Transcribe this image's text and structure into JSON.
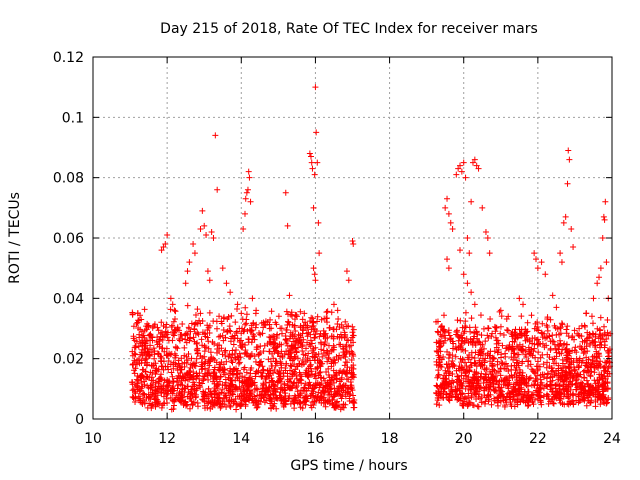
{
  "chart_data": {
    "type": "scatter",
    "marker": "+",
    "color": "#ff0000",
    "title": "Day 215 of 2018, Rate Of TEC Index for receiver mars",
    "xlabel": "GPS time / hours",
    "ylabel": "ROTI / TECUs",
    "xlim": [
      10,
      24
    ],
    "ylim": [
      0,
      0.12
    ],
    "grid": true,
    "x_ticks": [
      10,
      12,
      14,
      16,
      18,
      20,
      22,
      24
    ],
    "x_tick_labels": [
      "10",
      "12",
      "14",
      "16",
      "18",
      "20",
      "22",
      "24"
    ],
    "y_ticks": [
      0,
      0.02,
      0.04,
      0.06,
      0.08,
      0.1,
      0.12
    ],
    "y_tick_labels": [
      "0",
      "0.02",
      "0.04",
      "0.06",
      "0.08",
      "0.1",
      "0.12"
    ],
    "dense_bands": [
      {
        "x_start": 11.05,
        "x_end": 17.05,
        "y_min": 0.003,
        "y_max": 0.03,
        "points": 1800
      },
      {
        "x_start": 19.25,
        "x_end": 23.95,
        "y_min": 0.004,
        "y_max": 0.028,
        "points": 1400
      }
    ],
    "points": [
      [
        11.2,
        0.032
      ],
      [
        11.3,
        0.033
      ],
      [
        11.5,
        0.031
      ],
      [
        11.6,
        0.027
      ],
      [
        11.85,
        0.056
      ],
      [
        11.9,
        0.057
      ],
      [
        11.95,
        0.058
      ],
      [
        12.0,
        0.061
      ],
      [
        12.1,
        0.04
      ],
      [
        12.15,
        0.038
      ],
      [
        12.2,
        0.036
      ],
      [
        12.5,
        0.045
      ],
      [
        12.55,
        0.049
      ],
      [
        12.6,
        0.052
      ],
      [
        12.7,
        0.058
      ],
      [
        12.75,
        0.055
      ],
      [
        12.9,
        0.063
      ],
      [
        12.95,
        0.069
      ],
      [
        13.0,
        0.064
      ],
      [
        13.05,
        0.061
      ],
      [
        13.1,
        0.049
      ],
      [
        13.15,
        0.046
      ],
      [
        13.2,
        0.062
      ],
      [
        13.25,
        0.06
      ],
      [
        13.3,
        0.094
      ],
      [
        13.35,
        0.076
      ],
      [
        13.5,
        0.05
      ],
      [
        13.6,
        0.045
      ],
      [
        13.7,
        0.042
      ],
      [
        13.9,
        0.038
      ],
      [
        14.0,
        0.035
      ],
      [
        14.05,
        0.063
      ],
      [
        14.1,
        0.068
      ],
      [
        14.12,
        0.073
      ],
      [
        14.15,
        0.075
      ],
      [
        14.18,
        0.076
      ],
      [
        14.2,
        0.082
      ],
      [
        14.22,
        0.08
      ],
      [
        14.25,
        0.072
      ],
      [
        14.3,
        0.04
      ],
      [
        14.4,
        0.036
      ],
      [
        14.6,
        0.032
      ],
      [
        15.2,
        0.075
      ],
      [
        15.25,
        0.064
      ],
      [
        15.3,
        0.041
      ],
      [
        15.5,
        0.034
      ],
      [
        15.7,
        0.035
      ],
      [
        15.85,
        0.088
      ],
      [
        15.88,
        0.087
      ],
      [
        15.9,
        0.085
      ],
      [
        15.92,
        0.083
      ],
      [
        15.95,
        0.07
      ],
      [
        15.98,
        0.081
      ],
      [
        16.0,
        0.11
      ],
      [
        16.02,
        0.095
      ],
      [
        16.05,
        0.085
      ],
      [
        16.08,
        0.065
      ],
      [
        16.1,
        0.055
      ],
      [
        15.95,
        0.05
      ],
      [
        15.98,
        0.048
      ],
      [
        16.0,
        0.046
      ],
      [
        16.5,
        0.038
      ],
      [
        16.6,
        0.036
      ],
      [
        16.85,
        0.049
      ],
      [
        16.9,
        0.046
      ],
      [
        17.0,
        0.059
      ],
      [
        17.02,
        0.058
      ],
      [
        19.5,
        0.07
      ],
      [
        19.55,
        0.073
      ],
      [
        19.6,
        0.068
      ],
      [
        19.65,
        0.065
      ],
      [
        19.7,
        0.063
      ],
      [
        19.8,
        0.081
      ],
      [
        19.85,
        0.083
      ],
      [
        19.9,
        0.084
      ],
      [
        19.95,
        0.082
      ],
      [
        20.0,
        0.085
      ],
      [
        20.05,
        0.08
      ],
      [
        20.1,
        0.06
      ],
      [
        20.15,
        0.055
      ],
      [
        20.2,
        0.072
      ],
      [
        20.25,
        0.085
      ],
      [
        20.3,
        0.086
      ],
      [
        20.35,
        0.084
      ],
      [
        20.4,
        0.083
      ],
      [
        20.5,
        0.07
      ],
      [
        20.6,
        0.062
      ],
      [
        20.65,
        0.06
      ],
      [
        20.7,
        0.055
      ],
      [
        19.55,
        0.053
      ],
      [
        19.6,
        0.05
      ],
      [
        19.9,
        0.056
      ],
      [
        20.0,
        0.048
      ],
      [
        20.1,
        0.045
      ],
      [
        20.2,
        0.042
      ],
      [
        20.3,
        0.038
      ],
      [
        21.0,
        0.036
      ],
      [
        21.2,
        0.034
      ],
      [
        21.5,
        0.04
      ],
      [
        21.6,
        0.038
      ],
      [
        21.9,
        0.055
      ],
      [
        21.95,
        0.053
      ],
      [
        22.0,
        0.05
      ],
      [
        22.1,
        0.052
      ],
      [
        22.2,
        0.048
      ],
      [
        22.4,
        0.041
      ],
      [
        22.5,
        0.037
      ],
      [
        22.6,
        0.055
      ],
      [
        22.65,
        0.052
      ],
      [
        22.7,
        0.065
      ],
      [
        22.75,
        0.067
      ],
      [
        22.8,
        0.078
      ],
      [
        22.82,
        0.089
      ],
      [
        22.85,
        0.086
      ],
      [
        22.9,
        0.063
      ],
      [
        22.95,
        0.057
      ],
      [
        23.3,
        0.035
      ],
      [
        23.5,
        0.04
      ],
      [
        23.6,
        0.045
      ],
      [
        23.65,
        0.047
      ],
      [
        23.7,
        0.05
      ],
      [
        23.75,
        0.06
      ],
      [
        23.78,
        0.067
      ],
      [
        23.8,
        0.066
      ],
      [
        23.82,
        0.072
      ],
      [
        23.85,
        0.052
      ],
      [
        23.9,
        0.04
      ]
    ]
  }
}
